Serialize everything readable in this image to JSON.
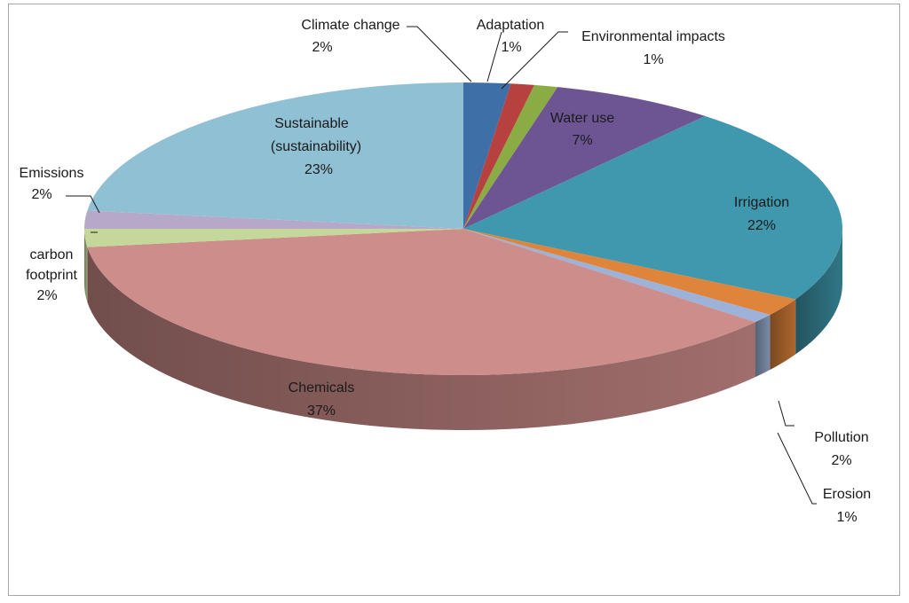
{
  "chart_data": {
    "type": "pie",
    "title": "",
    "style": "3d-exploded-none",
    "slices": [
      {
        "label": "Climate change",
        "value": 2,
        "value_text": "2%",
        "color": "#3e6fa7"
      },
      {
        "label": "Adaptation",
        "value": 1,
        "value_text": "1%",
        "color": "#b7413e"
      },
      {
        "label": "Environmental impacts",
        "value": 1,
        "value_text": "1%",
        "color": "#8bac45"
      },
      {
        "label": "Water use",
        "value": 7,
        "value_text": "7%",
        "color": "#6d5594"
      },
      {
        "label": "Irrigation",
        "value": 22,
        "value_text": "22%",
        "color": "#3f98ad"
      },
      {
        "label": "Pollution",
        "value": 2,
        "value_text": "2%",
        "color": "#de843b"
      },
      {
        "label": "Erosion",
        "value": 1,
        "value_text": "1%",
        "color": "#9cb2d8"
      },
      {
        "label": "Chemicals",
        "value": 37,
        "value_text": "37%",
        "color": "#cd8d8b"
      },
      {
        "label": "carbon footprint",
        "value": 2,
        "value_text": "2%",
        "color": "#c4d89c"
      },
      {
        "label": "Emissions",
        "value": 2,
        "value_text": "2%",
        "color": "#b6a8c8"
      },
      {
        "label": "Sustainable (sustainability)",
        "value": 23,
        "value_text": "23%",
        "color": "#90c0d3"
      }
    ]
  }
}
